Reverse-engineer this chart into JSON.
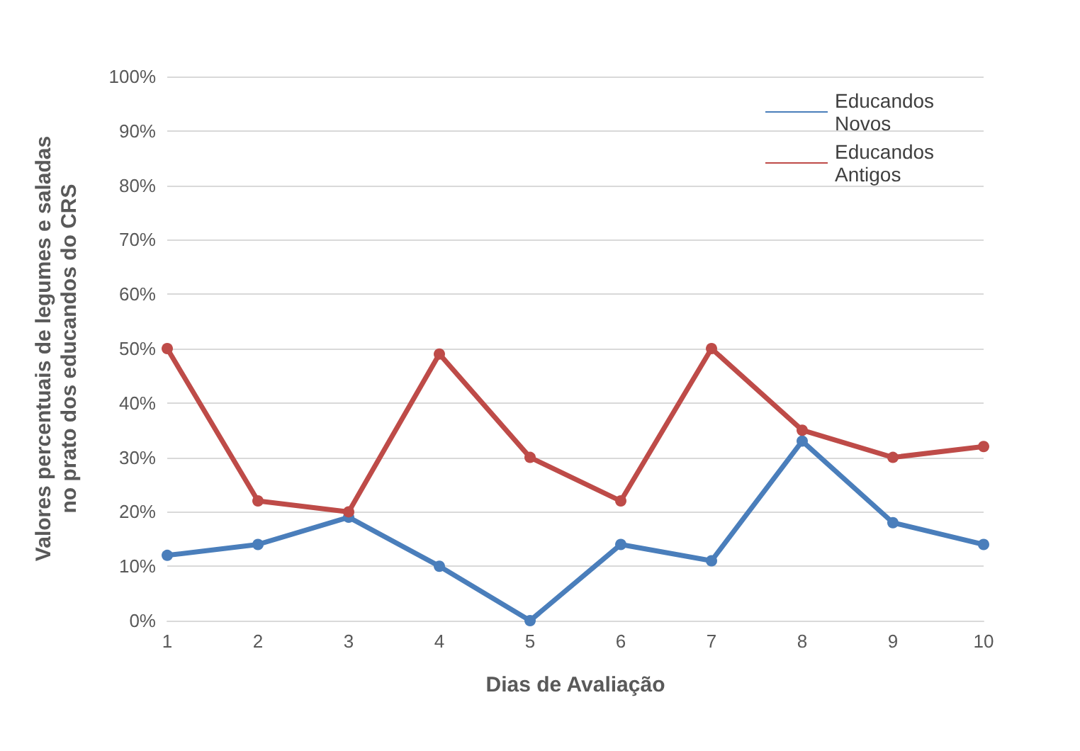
{
  "chart_data": {
    "type": "line",
    "xlabel": "Dias de Avaliação",
    "ylabel": "Valores percentuais de legumes e saladas no prato dos educandos do CRS",
    "categories": [
      "1",
      "2",
      "3",
      "4",
      "5",
      "6",
      "7",
      "8",
      "9",
      "10"
    ],
    "series": [
      {
        "name": "Educandos Novos",
        "color": "#4a7ebb",
        "values": [
          12,
          14,
          19,
          10,
          0,
          14,
          11,
          33,
          18,
          14
        ]
      },
      {
        "name": "Educandos Antigos",
        "color": "#be4b48",
        "values": [
          50,
          22,
          20,
          49,
          30,
          22,
          50,
          35,
          30,
          32
        ]
      }
    ],
    "ylim": [
      0,
      100
    ],
    "yticks": [
      {
        "value": 0,
        "label": "0%"
      },
      {
        "value": 10,
        "label": "10%"
      },
      {
        "value": 20,
        "label": "20%"
      },
      {
        "value": 30,
        "label": "30%"
      },
      {
        "value": 40,
        "label": "40%"
      },
      {
        "value": 50,
        "label": "50%"
      },
      {
        "value": 60,
        "label": "60%"
      },
      {
        "value": 70,
        "label": "70%"
      },
      {
        "value": 80,
        "label": "80%"
      },
      {
        "value": 90,
        "label": "90%"
      },
      {
        "value": 100,
        "label": "100%"
      }
    ],
    "grid": "y",
    "legend": "top right",
    "marker": "circle",
    "line_style": "solid"
  }
}
